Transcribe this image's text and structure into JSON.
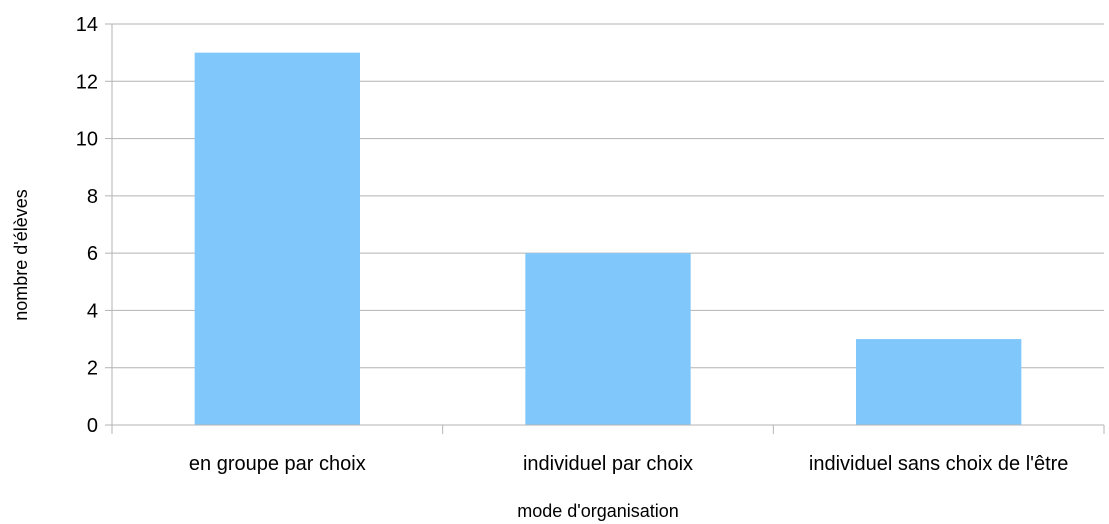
{
  "chart_data": {
    "type": "bar",
    "categories": [
      "en groupe par choix",
      "individuel par choix",
      "individuel sans choix de l'être"
    ],
    "values": [
      13,
      6,
      3
    ],
    "xlabel": "mode d'organisation",
    "ylabel": "nombre d'élèves",
    "ylim": [
      0,
      14
    ],
    "yticks": [
      0,
      2,
      4,
      6,
      8,
      10,
      12,
      14
    ],
    "grid": true,
    "legend": "none",
    "colors": {
      "bar": "#80c8fc",
      "grid": "#b3b3b3",
      "axis": "#b3b3b3",
      "text": "#000000"
    }
  }
}
